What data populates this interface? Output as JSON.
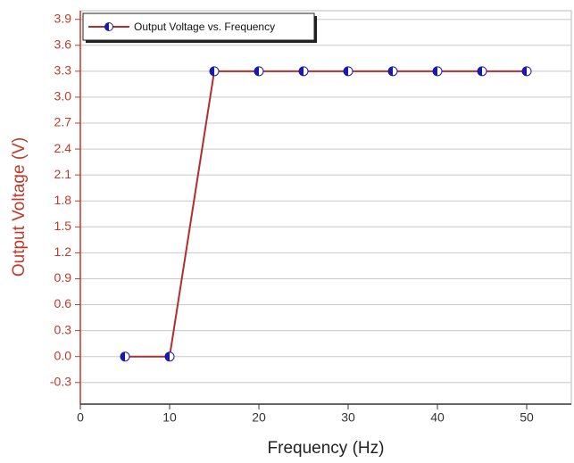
{
  "chart_data": {
    "type": "line",
    "x_label": "Frequency (Hz)",
    "y_label": "Output Voltage (V)",
    "x": [
      5,
      10,
      15,
      20,
      25,
      30,
      35,
      40,
      45,
      50
    ],
    "series": [
      {
        "name": "Output Voltage vs. Frequency",
        "color": "#b22e2e",
        "marker_color": "#1a1aa8",
        "values": [
          0,
          0,
          3.3,
          3.3,
          3.3,
          3.3,
          3.3,
          3.3,
          3.3,
          3.3
        ]
      }
    ],
    "xlim": [
      0,
      55
    ],
    "xticks": [
      0,
      10,
      20,
      30,
      40,
      50
    ],
    "ylim": [
      -0.55,
      4.0
    ],
    "yticks": [
      -0.3,
      {
        "value": 0,
        "label": "0.0"
      },
      0.3,
      0.6,
      0.9,
      1.2,
      1.5,
      1.8,
      2.1,
      2.4,
      2.7,
      {
        "value": 3,
        "label": "3.0"
      },
      3.3,
      3.6,
      3.9
    ],
    "grid": true,
    "y_axis_color": "#c0392b",
    "legend": "upper left"
  }
}
